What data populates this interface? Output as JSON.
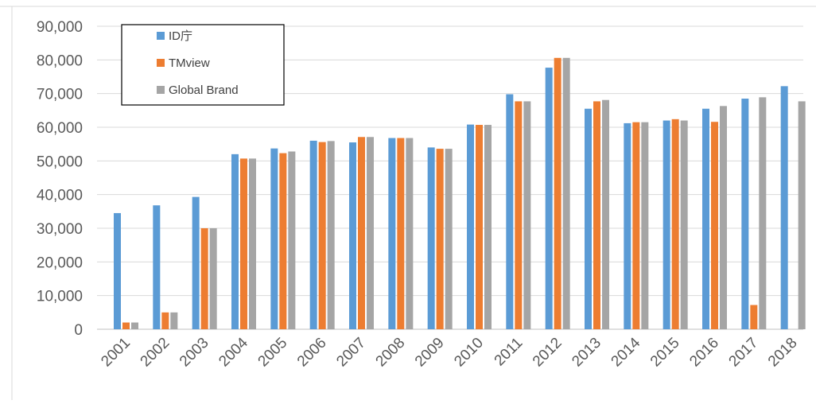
{
  "chart_data": {
    "type": "bar",
    "categories": [
      "2001",
      "2002",
      "2003",
      "2004",
      "2005",
      "2006",
      "2007",
      "2008",
      "2009",
      "2010",
      "2011",
      "2012",
      "2013",
      "2014",
      "2015",
      "2016",
      "2017",
      "2018"
    ],
    "series": [
      {
        "name": "ID庁",
        "color": "#5b9bd5",
        "values": [
          34500,
          36800,
          39300,
          52000,
          53700,
          56000,
          55500,
          56800,
          54000,
          60800,
          69800,
          77700,
          65500,
          61200,
          62000,
          65500,
          68500,
          72200
        ]
      },
      {
        "name": "TMview",
        "color": "#ed7d31",
        "values": [
          2000,
          5000,
          30000,
          50700,
          52300,
          55600,
          57100,
          56800,
          53600,
          60700,
          67700,
          80600,
          67700,
          61500,
          62400,
          61600,
          7200,
          null
        ]
      },
      {
        "name": "Global Brand",
        "color": "#a5a5a5",
        "values": [
          2000,
          5000,
          30000,
          50700,
          52800,
          55900,
          57100,
          56800,
          53600,
          60700,
          67700,
          80600,
          68100,
          61500,
          62000,
          66300,
          68900,
          67700
        ]
      }
    ],
    "ylim": [
      0,
      90000
    ],
    "yticks": [
      0,
      10000,
      20000,
      30000,
      40000,
      50000,
      60000,
      70000,
      80000,
      90000
    ],
    "ytick_labels": [
      "0",
      "10,000",
      "20,000",
      "30,000",
      "40,000",
      "50,000",
      "60,000",
      "70,000",
      "80,000",
      "90,000"
    ],
    "grid": true,
    "legend_position": "top-left"
  }
}
